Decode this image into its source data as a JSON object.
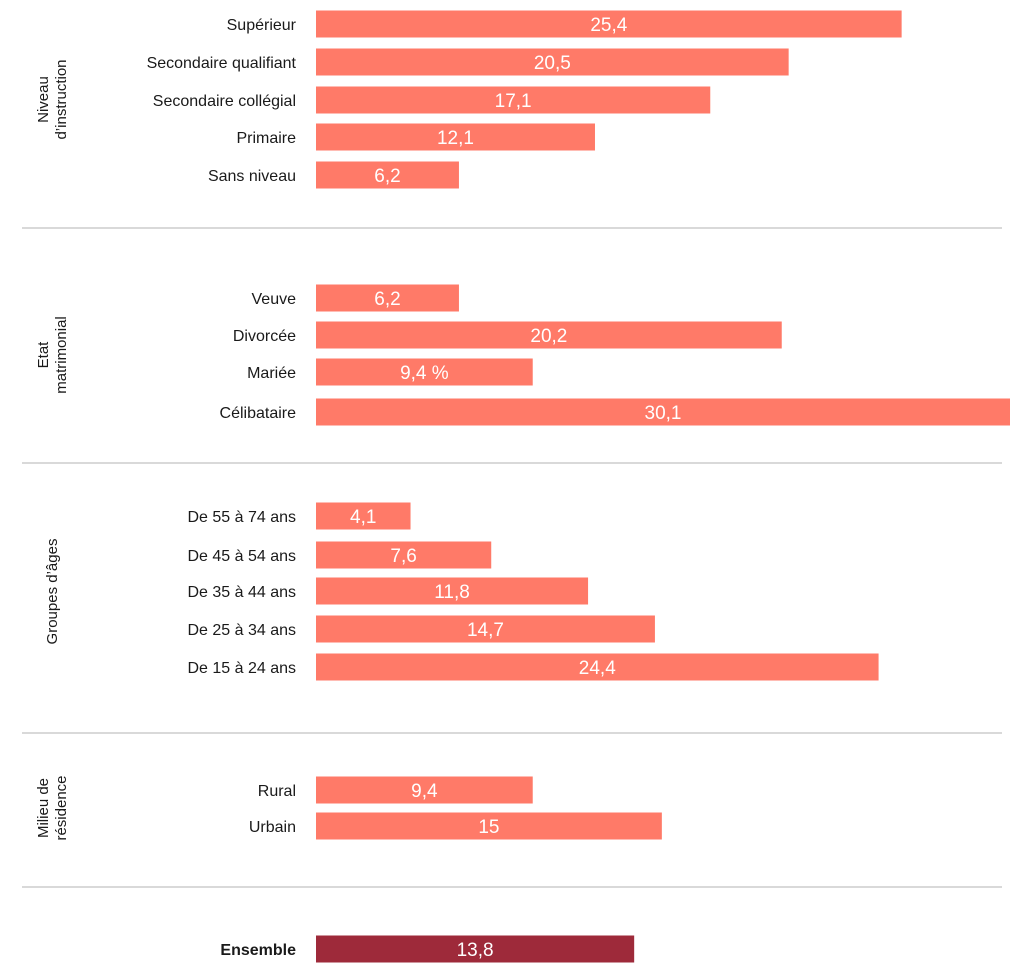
{
  "chart_data": {
    "type": "bar",
    "orientation": "horizontal",
    "colors": {
      "bar": "#ff7a68",
      "total": "#9e2a3a"
    },
    "groups": [
      {
        "label": [
          "Niveau",
          "d’instruction"
        ],
        "bars": [
          {
            "category": "Supérieur",
            "value": 25.4,
            "value_label": "25,4"
          },
          {
            "category": "Secondaire qualifiant",
            "value": 20.5,
            "value_label": "20,5"
          },
          {
            "category": "Secondaire collégial",
            "value": 17.1,
            "value_label": "17,1"
          },
          {
            "category": "Primaire",
            "value": 12.1,
            "value_label": "12,1"
          },
          {
            "category": "Sans niveau",
            "value": 6.2,
            "value_label": "6,2"
          }
        ]
      },
      {
        "label": [
          "Etat",
          "matrimonial"
        ],
        "bars": [
          {
            "category": "Veuve",
            "value": 6.2,
            "value_label": "6,2"
          },
          {
            "category": "Divorcée",
            "value": 20.2,
            "value_label": "20,2"
          },
          {
            "category": "Mariée",
            "value": 9.4,
            "value_label": "9,4 %"
          },
          {
            "category": "Célibataire",
            "value": 30.1,
            "value_label": "30,1"
          }
        ]
      },
      {
        "label": [
          "Groupes d’âges"
        ],
        "bars": [
          {
            "category": "De 55 à 74 ans",
            "value": 4.1,
            "value_label": "4,1"
          },
          {
            "category": "De 45 à 54 ans",
            "value": 7.6,
            "value_label": "7,6"
          },
          {
            "category": "De 35 à 44 ans",
            "value": 11.8,
            "value_label": "11,8"
          },
          {
            "category": "De 25 à 34 ans",
            "value": 14.7,
            "value_label": "14,7"
          },
          {
            "category": "De 15 à 24 ans",
            "value": 24.4,
            "value_label": "24,4"
          }
        ]
      },
      {
        "label": [
          "Milieu de",
          "résidence"
        ],
        "bars": [
          {
            "category": "Rural",
            "value": 9.4,
            "value_label": "9,4"
          },
          {
            "category": "Urbain",
            "value": 15,
            "value_label": "15"
          }
        ]
      }
    ],
    "total": {
      "category": "Ensemble",
      "value": 13.8,
      "value_label": "13,8"
    },
    "xlim": [
      0,
      30.1
    ],
    "grid": false,
    "legend": "none"
  }
}
